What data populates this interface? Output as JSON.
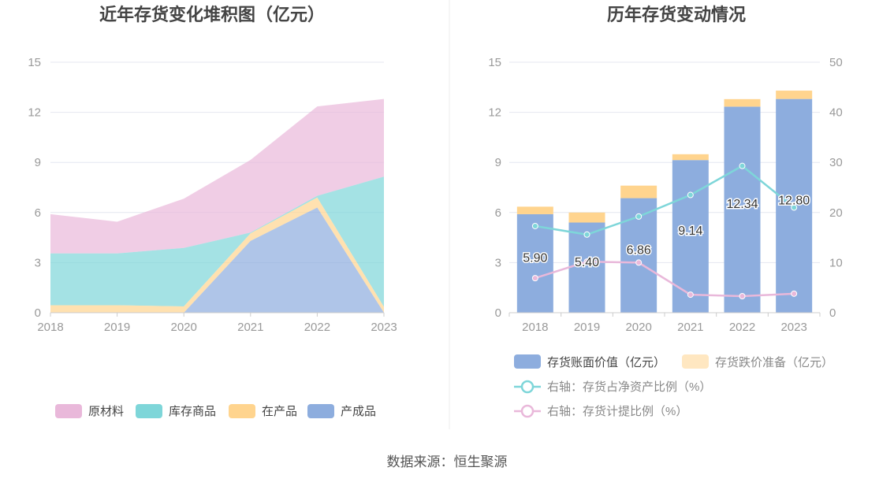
{
  "source": "数据来源：恒生聚源",
  "colors": {
    "raw_material": "#e9b8da",
    "stock_goods": "#7ed6d9",
    "wip": "#ffd48e",
    "finished": "#8dadde",
    "book_value": "#8dadde",
    "impairment": "#ffd48e",
    "ratio_net_asset": "#7ed6d9",
    "ratio_provision": "#e9b8da",
    "axis_text": "#999999",
    "grid": "#e4e7f0",
    "title": "#444444"
  },
  "chart_data": [
    {
      "type": "area",
      "stacked": true,
      "title": "近年存货变化堆积图（亿元）",
      "x": [
        "2018",
        "2019",
        "2020",
        "2021",
        "2022",
        "2023"
      ],
      "ylim": [
        0,
        15
      ],
      "yticks": [
        "0",
        "3",
        "6",
        "9",
        "12",
        "15"
      ],
      "grid": true,
      "legend_position": "bottom",
      "series": [
        {
          "name": "产成品",
          "values": [
            0,
            0,
            0,
            4.3,
            6.3,
            0
          ]
        },
        {
          "name": "在产品",
          "values": [
            0.45,
            0.45,
            0.38,
            0.45,
            0.6,
            0.35
          ]
        },
        {
          "name": "库存商品",
          "values": [
            3.1,
            3.1,
            3.5,
            0.05,
            0.1,
            7.8
          ]
        },
        {
          "name": "原材料",
          "values": [
            2.35,
            1.9,
            2.95,
            4.35,
            5.35,
            4.65
          ]
        }
      ],
      "legend": [
        "原材料",
        "库存商品",
        "在产品",
        "产成品"
      ]
    },
    {
      "type": "bar",
      "stacked": true,
      "title": "历年存货变动情况",
      "categories": [
        "2018",
        "2019",
        "2020",
        "2021",
        "2022",
        "2023"
      ],
      "ylim": [
        0,
        15
      ],
      "yticks": [
        "0",
        "3",
        "6",
        "9",
        "12",
        "15"
      ],
      "y2lim": [
        0,
        50
      ],
      "y2ticks": [
        "0",
        "10",
        "20",
        "30",
        "40",
        "50"
      ],
      "grid": true,
      "legend_position": "bottom",
      "bar_series": [
        {
          "name": "存货账面价值（亿元）",
          "values": [
            5.9,
            5.4,
            6.86,
            9.14,
            12.34,
            12.8
          ],
          "labels": [
            "5.90",
            "5.40",
            "6.86",
            "9.14",
            "12.34",
            "12.80"
          ]
        },
        {
          "name": "存货跌价准备（亿元）",
          "values": [
            0.45,
            0.6,
            0.75,
            0.35,
            0.45,
            0.5
          ]
        }
      ],
      "line_series": [
        {
          "name": "右轴：存货占净资产比例（%）",
          "axis": "right",
          "values": [
            17.3,
            15.6,
            19.2,
            23.5,
            29.3,
            21.0
          ]
        },
        {
          "name": "右轴：存货计提比例（%）",
          "axis": "right",
          "values": [
            6.9,
            10.2,
            10.0,
            3.6,
            3.3,
            3.8
          ]
        }
      ]
    }
  ]
}
